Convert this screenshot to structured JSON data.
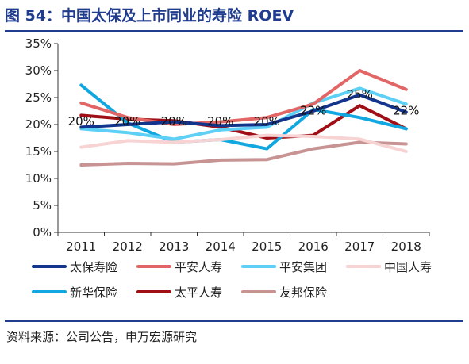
{
  "header": {
    "title": "图 54：中国太保及上市同业的寿险 ROEV"
  },
  "footer": {
    "source": "资料来源：公司公告，申万宏源研究"
  },
  "chart_data": {
    "type": "line",
    "x": [
      "2011",
      "2012",
      "2013",
      "2014",
      "2015",
      "2016",
      "2017",
      "2018"
    ],
    "ylim": [
      0,
      35
    ],
    "yticks": [
      "0%",
      "5%",
      "10%",
      "15%",
      "20%",
      "25%",
      "30%",
      "35%"
    ],
    "grid": false,
    "legend_position": "bottom",
    "series": [
      {
        "name": "太保寿险",
        "color": "#12348c",
        "values": [
          19.5,
          20.0,
          20.5,
          19.8,
          20.0,
          22.5,
          25.5,
          22.3
        ]
      },
      {
        "name": "平安人寿",
        "color": "#e36666",
        "values": [
          24.0,
          21.3,
          20.0,
          20.5,
          21.3,
          23.8,
          30.0,
          26.5
        ]
      },
      {
        "name": "平安集团",
        "color": "#5fd0f5",
        "values": [
          19.2,
          18.5,
          17.3,
          19.0,
          19.5,
          24.0,
          26.7,
          23.8
        ]
      },
      {
        "name": "中国人寿",
        "color": "#f7d3d3",
        "values": [
          15.8,
          17.0,
          16.7,
          17.2,
          18.0,
          17.8,
          17.3,
          15.0
        ]
      },
      {
        "name": "新华保险",
        "color": "#11a7e0",
        "values": [
          27.3,
          20.3,
          16.7,
          17.2,
          15.5,
          22.8,
          21.3,
          19.2
        ]
      },
      {
        "name": "太平人寿",
        "color": "#a00f15",
        "values": [
          21.7,
          21.0,
          20.7,
          19.5,
          17.5,
          18.0,
          23.5,
          19.2
        ]
      },
      {
        "name": "友邦保险",
        "color": "#c79393",
        "values": [
          12.5,
          12.8,
          12.7,
          13.4,
          13.5,
          15.5,
          16.7,
          16.4
        ]
      }
    ],
    "annotations": [
      {
        "x": "2011",
        "y": 20,
        "text": "20%"
      },
      {
        "x": "2012",
        "y": 20,
        "text": "20%"
      },
      {
        "x": "2013",
        "y": 20,
        "text": "20%"
      },
      {
        "x": "2014",
        "y": 20,
        "text": "20%"
      },
      {
        "x": "2015",
        "y": 20,
        "text": "20%"
      },
      {
        "x": "2016",
        "y": 22,
        "text": "22%"
      },
      {
        "x": "2017",
        "y": 25,
        "text": "25%"
      },
      {
        "x": "2018",
        "y": 22,
        "text": "22%"
      }
    ]
  }
}
